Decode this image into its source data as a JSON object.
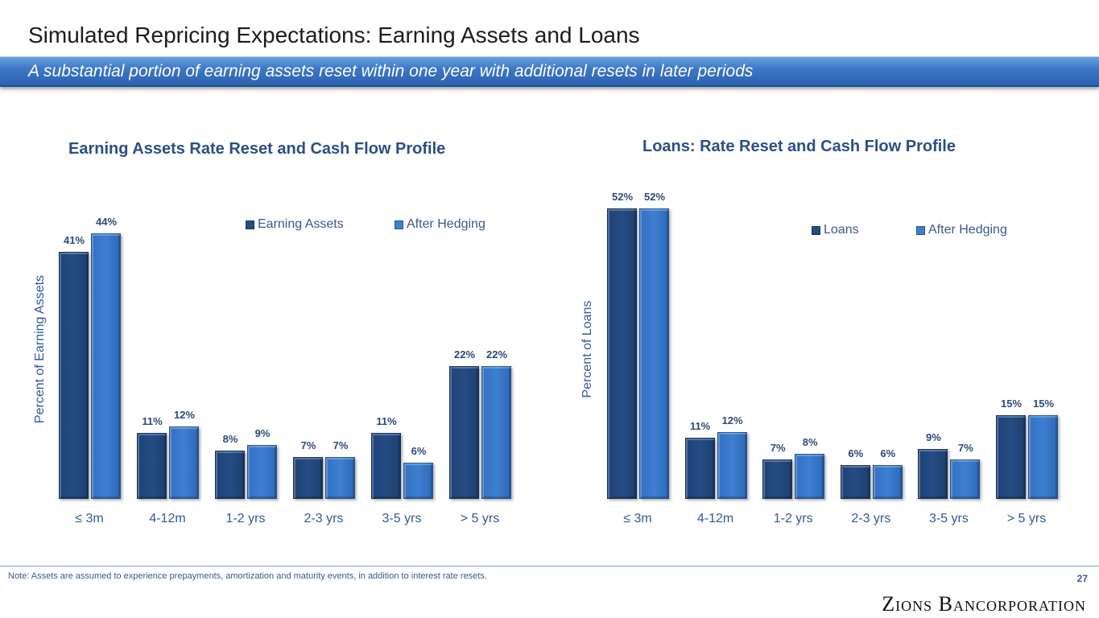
{
  "title": "Simulated Repricing Expectations: Earning Assets and Loans",
  "subtitle": "A substantial portion of earning assets reset within one year with additional resets in later periods",
  "note": "Note: Assets are assumed to experience prepayments, amortization and maturity events, in addition to interest rate resets.",
  "page_number": "27",
  "logo": "Zions Bancorporation",
  "colors": {
    "primary": "#244c84",
    "hedged": "#3d7fd2"
  },
  "chart_data": [
    {
      "type": "bar",
      "title": "Earning Assets Rate Reset and Cash Flow Profile",
      "ylabel": "Percent of Earning Assets",
      "xlabel": "",
      "legend": "top-right",
      "categories": [
        "≤ 3m",
        "4-12m",
        "1-2 yrs",
        "2-3 yrs",
        "3-5 yrs",
        "> 5 yrs"
      ],
      "series": [
        {
          "name": "Earning Assets",
          "values": [
            41,
            11,
            8,
            7,
            11,
            22
          ],
          "labels": [
            "41%",
            "11%",
            "8%",
            "7%",
            "11%",
            "22%"
          ]
        },
        {
          "name": "After Hedging",
          "values": [
            44,
            12,
            9,
            7,
            6,
            22
          ],
          "labels": [
            "44%",
            "12%",
            "9%",
            "7%",
            "6%",
            "22%"
          ]
        }
      ]
    },
    {
      "type": "bar",
      "title": "Loans: Rate Reset and Cash Flow Profile",
      "ylabel": "Percent of Loans",
      "xlabel": "",
      "legend": "top-right",
      "categories": [
        "≤ 3m",
        "4-12m",
        "1-2 yrs",
        "2-3 yrs",
        "3-5 yrs",
        "> 5 yrs"
      ],
      "series": [
        {
          "name": "Loans",
          "values": [
            52,
            11,
            7,
            6,
            9,
            15
          ],
          "labels": [
            "52%",
            "11%",
            "7%",
            "6%",
            "9%",
            "15%"
          ]
        },
        {
          "name": "After Hedging",
          "values": [
            52,
            12,
            8,
            6,
            7,
            15
          ],
          "labels": [
            "52%",
            "12%",
            "8%",
            "6%",
            "7%",
            "15%"
          ]
        }
      ]
    }
  ]
}
